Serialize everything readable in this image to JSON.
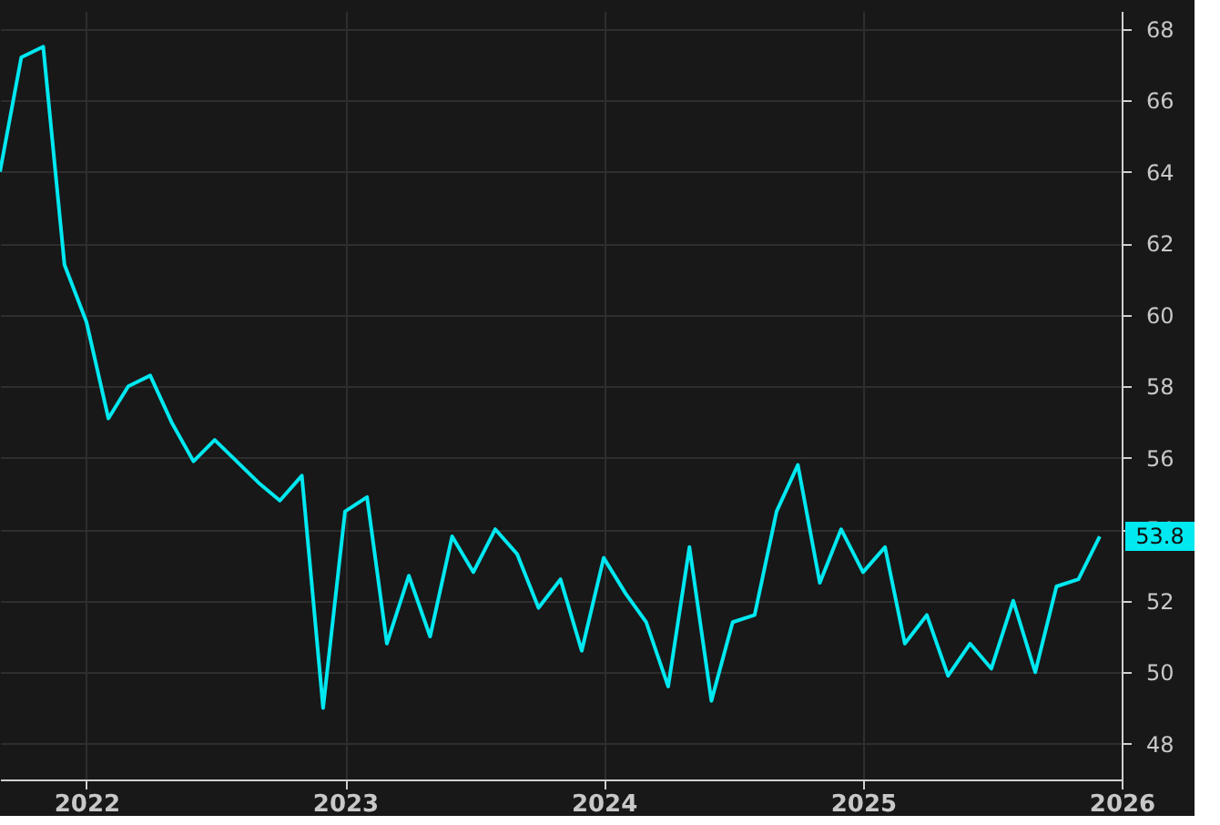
{
  "chart_data": {
    "type": "line",
    "x": [
      "2021-09",
      "2021-10",
      "2021-11",
      "2021-12",
      "2022-01",
      "2022-02",
      "2022-03",
      "2022-04",
      "2022-05",
      "2022-06",
      "2022-07",
      "2022-08",
      "2022-09",
      "2022-10",
      "2022-11",
      "2022-12",
      "2023-01",
      "2023-02",
      "2023-03",
      "2023-04",
      "2023-05",
      "2023-06",
      "2023-07",
      "2023-08",
      "2023-09",
      "2023-10",
      "2023-11",
      "2023-12",
      "2024-01",
      "2024-02",
      "2024-03",
      "2024-04",
      "2024-05",
      "2024-06",
      "2024-07",
      "2024-08",
      "2024-09",
      "2024-10",
      "2024-11",
      "2024-12",
      "2025-01",
      "2025-02",
      "2025-03",
      "2025-04",
      "2025-05",
      "2025-06",
      "2025-07",
      "2025-08",
      "2025-09",
      "2025-10",
      "2025-11",
      "2025-12"
    ],
    "series": [
      {
        "color": "#00e8f0",
        "values": [
          64.0,
          67.2,
          67.5,
          61.4,
          59.8,
          57.1,
          58.0,
          58.3,
          57.0,
          55.9,
          56.5,
          55.9,
          55.3,
          54.8,
          55.5,
          49.0,
          54.5,
          54.9,
          50.8,
          52.7,
          51.0,
          53.8,
          52.8,
          54.0,
          53.3,
          51.8,
          52.6,
          50.6,
          53.2,
          52.2,
          51.4,
          49.6,
          53.5,
          49.2,
          51.4,
          51.6,
          54.5,
          55.8,
          52.5,
          54.0,
          52.8,
          53.5,
          50.8,
          51.6,
          49.9,
          50.8,
          50.1,
          52.0,
          50.0,
          52.4,
          52.6,
          53.8
        ]
      }
    ],
    "xlim": [
      "2021-09-01",
      "2026-01-01"
    ],
    "xticks": [
      {
        "value": "2022-01-01",
        "label": "2022"
      },
      {
        "value": "2023-01-01",
        "label": "2023"
      },
      {
        "value": "2024-01-01",
        "label": "2024"
      },
      {
        "value": "2025-01-01",
        "label": "2025"
      },
      {
        "value": "2026-01-01",
        "label": "2026"
      }
    ],
    "ylim": [
      47,
      68.5
    ],
    "yticks": [
      48,
      50,
      52,
      54,
      56,
      58,
      60,
      62,
      64,
      66,
      68
    ],
    "grid": true,
    "marker": "none",
    "line_style": "solid",
    "annotations": [
      {
        "text": "53.8",
        "y": 53.8
      }
    ]
  }
}
